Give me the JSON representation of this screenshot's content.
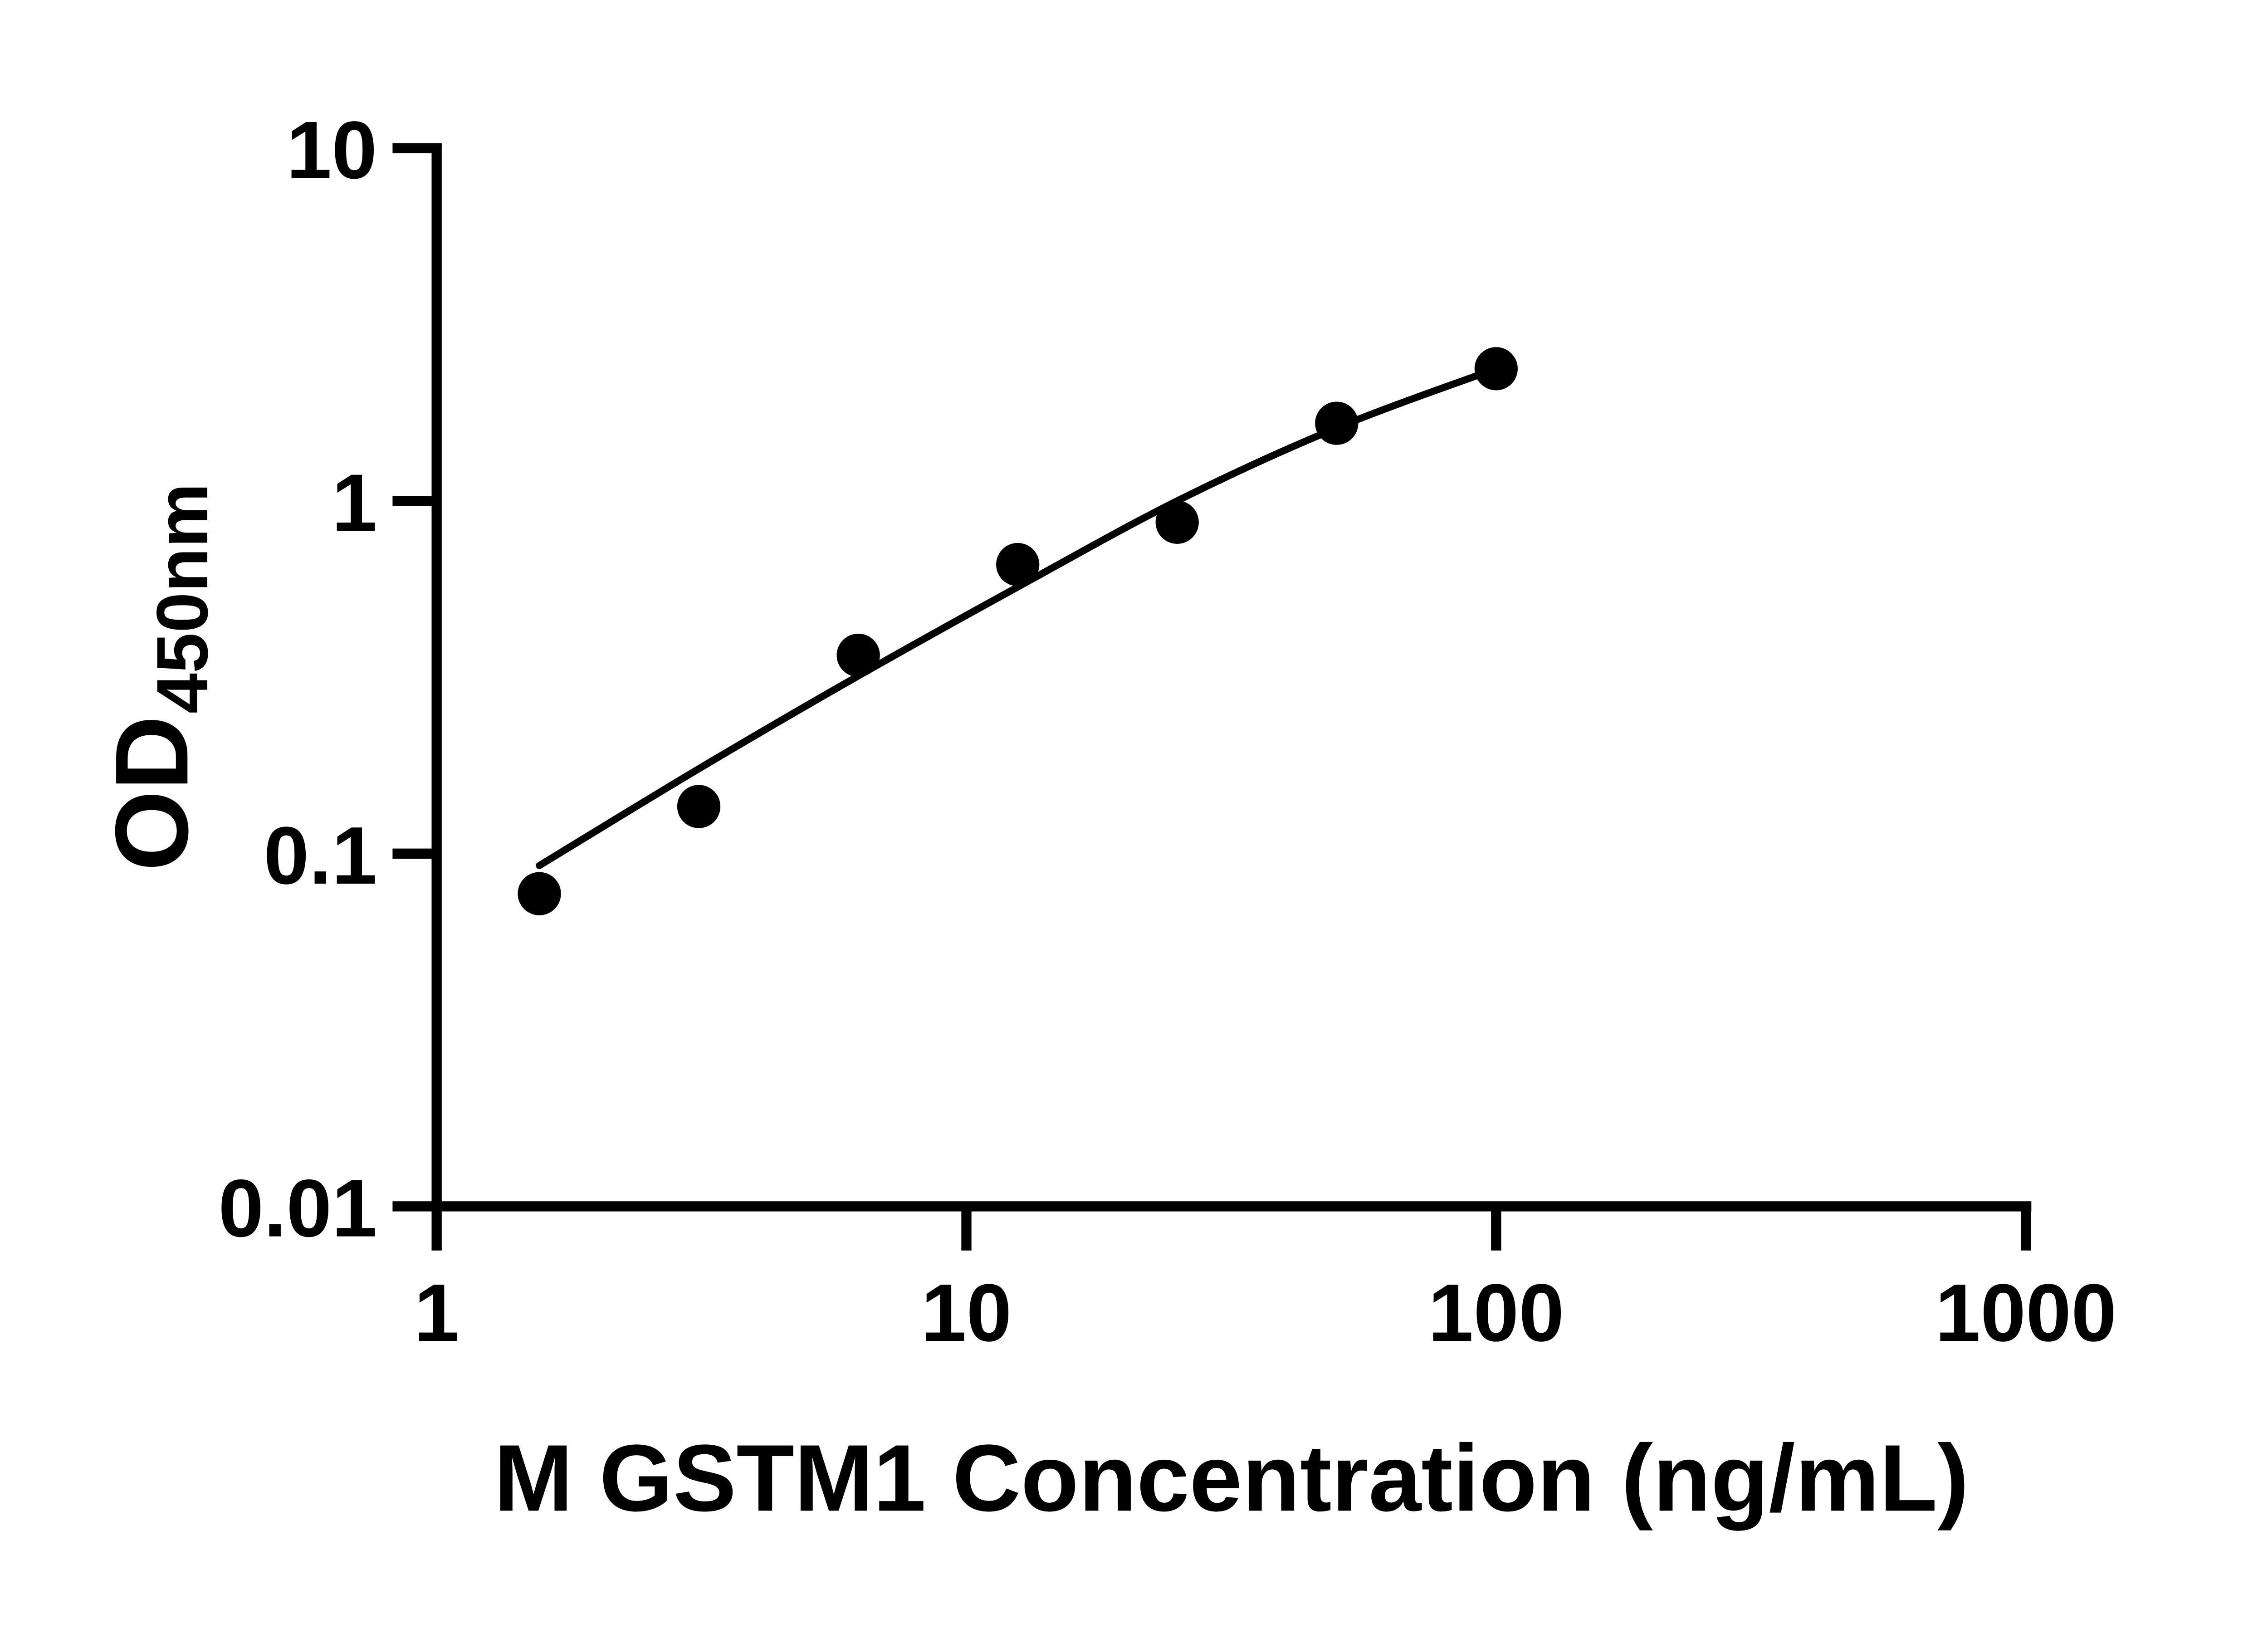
{
  "figure": {
    "background": "#ffffff",
    "axis_color": "#000000",
    "marker_color": "#000000",
    "curve_color": "#000000"
  },
  "chart_data": {
    "type": "scatter",
    "title": "",
    "xlabel": "M GSTM1 Concentration (ng/mL)",
    "ylabel_main": "OD",
    "ylabel_sub": "450nm",
    "x_scale": "log10",
    "y_scale": "log10",
    "xlim": [
      1,
      1000
    ],
    "ylim": [
      0.01,
      10
    ],
    "grid": false,
    "legend": "none",
    "x_ticks": {
      "values": [
        1,
        10,
        100,
        1000
      ],
      "labels": [
        "1",
        "10",
        "100",
        "1000"
      ]
    },
    "y_ticks": {
      "values": [
        10,
        1,
        0.1,
        0.01
      ],
      "labels": [
        "10",
        "1",
        "0.1",
        "0.01"
      ]
    },
    "series": [
      {
        "name": "standard-points",
        "marker": "filled-circle",
        "points": [
          {
            "x": 1.5625,
            "y": 0.077
          },
          {
            "x": 3.125,
            "y": 0.136
          },
          {
            "x": 6.25,
            "y": 0.365
          },
          {
            "x": 12.5,
            "y": 0.66
          },
          {
            "x": 25,
            "y": 0.87
          },
          {
            "x": 50,
            "y": 1.66
          },
          {
            "x": 100,
            "y": 2.37
          }
        ]
      }
    ],
    "fit_curve": {
      "name": "fitted-standard-curve",
      "x": [
        1.5625,
        3.125,
        6.25,
        12.5,
        25,
        50,
        100
      ],
      "y": [
        0.0925,
        0.174,
        0.319,
        0.57,
        1.0,
        1.61,
        2.37
      ]
    }
  }
}
